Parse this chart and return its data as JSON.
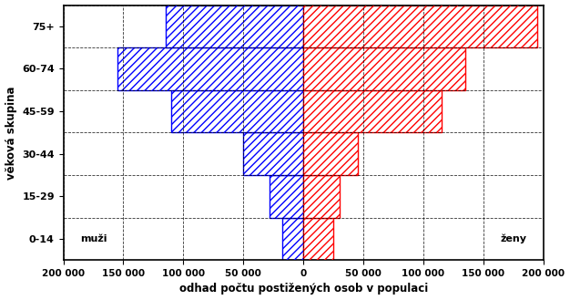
{
  "age_groups": [
    "0-14",
    "15-29",
    "30-44",
    "45-59",
    "60-74",
    "75+"
  ],
  "males": [
    18000,
    28000,
    50000,
    110000,
    155000,
    115000
  ],
  "females": [
    25000,
    30000,
    45000,
    115000,
    135000,
    195000
  ],
  "xlim": [
    -200000,
    200000
  ],
  "xticks": [
    -200000,
    -150000,
    -100000,
    -50000,
    0,
    50000,
    100000,
    150000,
    200000
  ],
  "xtick_labels": [
    "200 000",
    "150 000",
    "100 000",
    "50 000",
    "0",
    "50 000",
    "100 000",
    "150 000",
    "200 000"
  ],
  "ylabel": "věková skupina",
  "xlabel": "odhad počtu postižených osob v populaci",
  "male_color": "#0000FF",
  "female_color": "#FF0000",
  "male_label": "muži",
  "female_label": "ženy",
  "background_color": "#ffffff",
  "grid_color": "#000000",
  "grid_style": "--",
  "hatch": "////"
}
